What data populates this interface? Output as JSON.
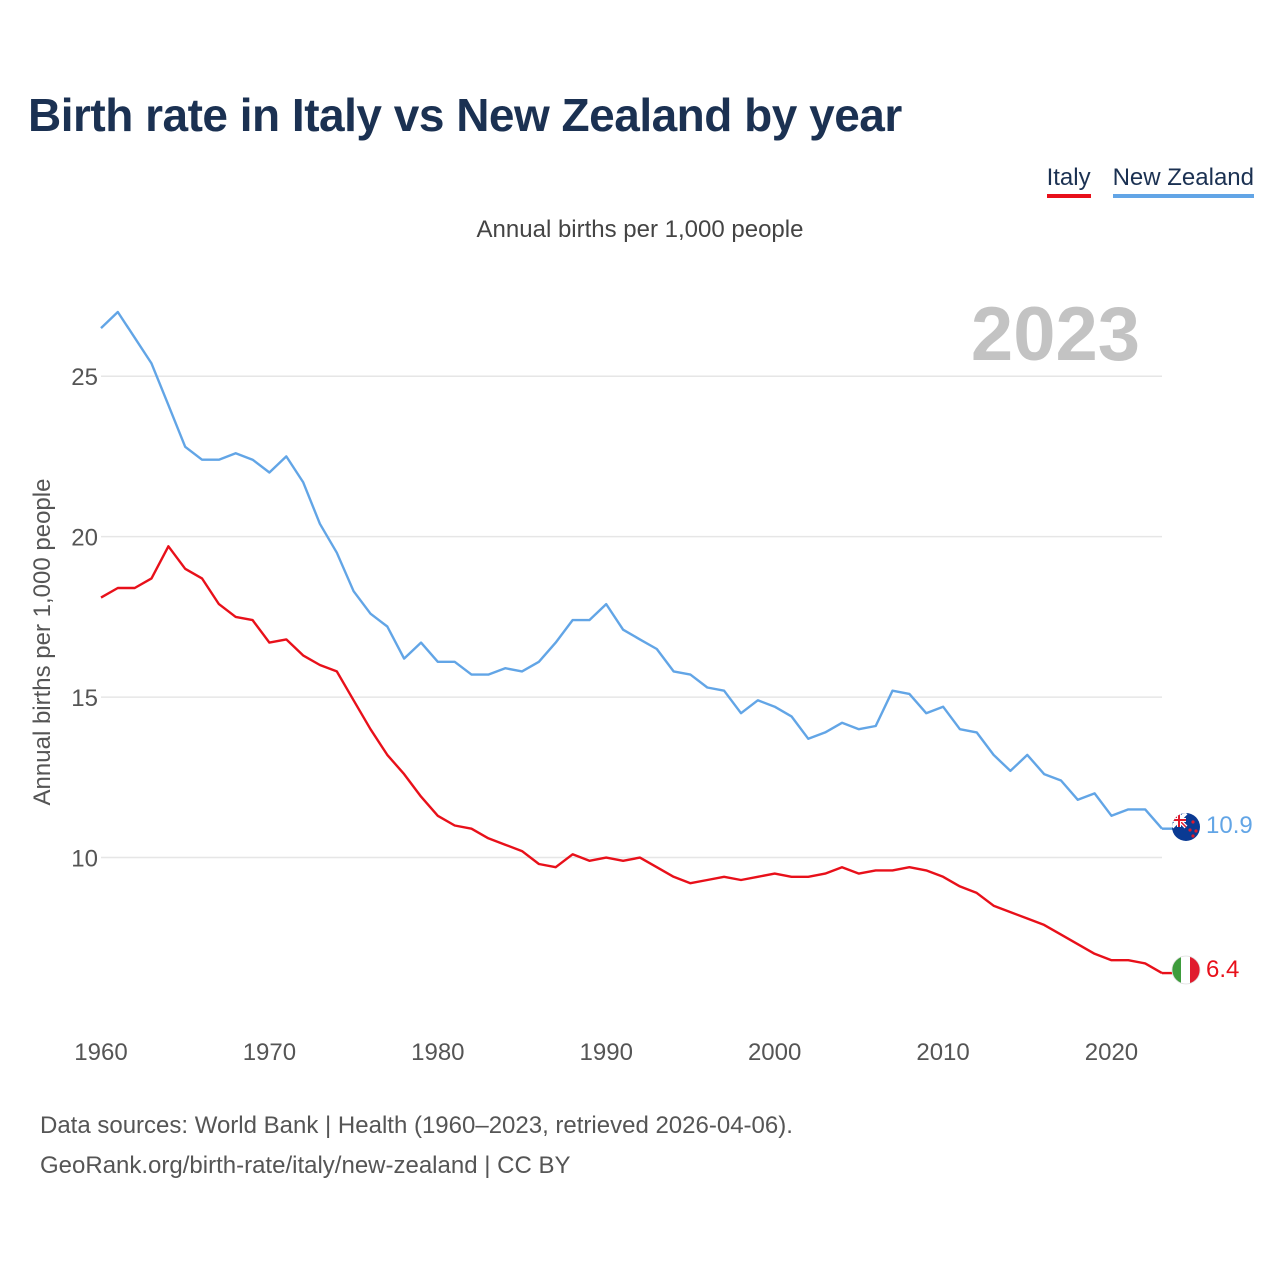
{
  "title": "Birth rate in Italy vs New Zealand by year",
  "subtitle": "Annual births per 1,000 people",
  "legend": [
    {
      "label": "Italy",
      "color": "#e8101a"
    },
    {
      "label": "New Zealand",
      "color": "#62a5e6"
    }
  ],
  "year_watermark": "2023",
  "source": {
    "line1": "Data sources: World Bank | Health (1960–2023, retrieved 2026-04-06).",
    "line2": "GeoRank.org/birth-rate/italy/new-zealand | CC BY"
  },
  "chart_data": {
    "type": "line",
    "title": "Birth rate in Italy vs New Zealand by year",
    "subtitle": "Annual births per 1,000 people",
    "xlabel": "",
    "ylabel": "Annual births per 1,000 people",
    "xlim": [
      1960,
      2023
    ],
    "ylim": [
      5,
      27.5
    ],
    "x_ticks": [
      1960,
      1970,
      1980,
      1990,
      2000,
      2010,
      2020
    ],
    "y_ticks": [
      10,
      15,
      20,
      25
    ],
    "grid": true,
    "x": [
      1960,
      1961,
      1962,
      1963,
      1964,
      1965,
      1966,
      1967,
      1968,
      1969,
      1970,
      1971,
      1972,
      1973,
      1974,
      1975,
      1976,
      1977,
      1978,
      1979,
      1980,
      1981,
      1982,
      1983,
      1984,
      1985,
      1986,
      1987,
      1988,
      1989,
      1990,
      1991,
      1992,
      1993,
      1994,
      1995,
      1996,
      1997,
      1998,
      1999,
      2000,
      2001,
      2002,
      2003,
      2004,
      2005,
      2006,
      2007,
      2008,
      2009,
      2010,
      2011,
      2012,
      2013,
      2014,
      2015,
      2016,
      2017,
      2018,
      2019,
      2020,
      2021,
      2022,
      2023
    ],
    "series": [
      {
        "name": "Italy",
        "color": "#e8101a",
        "end_label": "6.4",
        "flag": "italy-flag-icon",
        "values": [
          18.1,
          18.4,
          18.4,
          18.7,
          19.7,
          19.0,
          18.7,
          17.9,
          17.5,
          17.4,
          16.7,
          16.8,
          16.3,
          16.0,
          15.8,
          14.9,
          14.0,
          13.2,
          12.6,
          11.9,
          11.3,
          11.0,
          10.9,
          10.6,
          10.4,
          10.2,
          9.8,
          9.7,
          10.1,
          9.9,
          10.0,
          9.9,
          10.0,
          9.7,
          9.4,
          9.2,
          9.3,
          9.4,
          9.3,
          9.4,
          9.5,
          9.4,
          9.4,
          9.5,
          9.7,
          9.5,
          9.6,
          9.6,
          9.7,
          9.6,
          9.4,
          9.1,
          8.9,
          8.5,
          8.3,
          8.1,
          7.9,
          7.6,
          7.3,
          7.0,
          6.8,
          6.8,
          6.7,
          6.4
        ]
      },
      {
        "name": "New Zealand",
        "color": "#62a5e6",
        "end_label": "10.9",
        "flag": "new-zealand-flag-icon",
        "values": [
          26.5,
          27.0,
          26.2,
          25.4,
          24.1,
          22.8,
          22.4,
          22.4,
          22.6,
          22.4,
          22.0,
          22.5,
          21.7,
          20.4,
          19.5,
          18.3,
          17.6,
          17.2,
          16.2,
          16.7,
          16.1,
          16.1,
          15.7,
          15.7,
          15.9,
          15.8,
          16.1,
          16.7,
          17.4,
          17.4,
          17.9,
          17.1,
          16.8,
          16.5,
          15.8,
          15.7,
          15.3,
          15.2,
          14.5,
          14.9,
          14.7,
          14.4,
          13.7,
          13.9,
          14.2,
          14.0,
          14.1,
          15.2,
          15.1,
          14.5,
          14.7,
          14.0,
          13.9,
          13.2,
          12.7,
          13.2,
          12.6,
          12.4,
          11.8,
          12.0,
          11.3,
          11.5,
          11.5,
          10.9
        ]
      }
    ]
  }
}
